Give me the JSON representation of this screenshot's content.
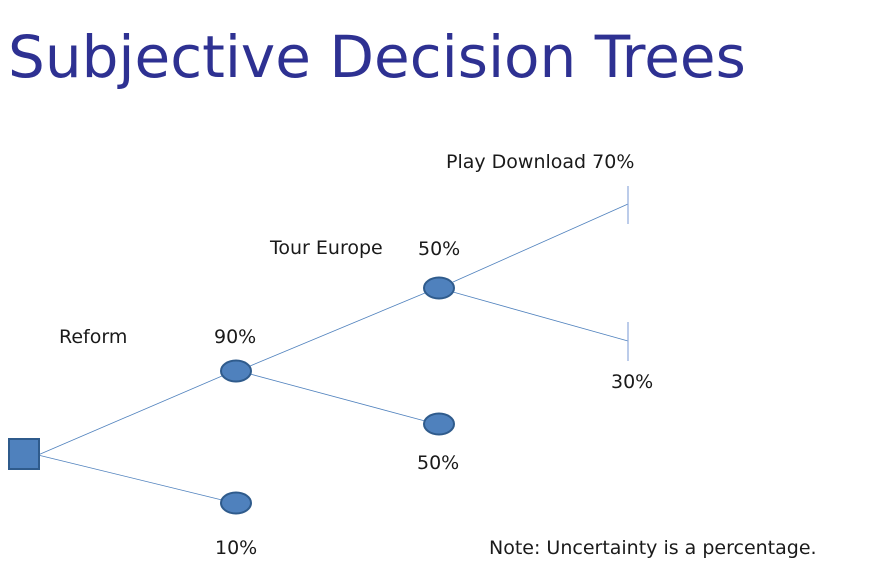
{
  "slide": {
    "title": "Subjective Decision Trees",
    "note": "Note:  Uncertainty is a percentage."
  },
  "tree": {
    "branch_labels": {
      "reform": "Reform",
      "tour_europe": "Tour Europe",
      "play_download": "Play Download"
    },
    "probabilities": {
      "reform_success": "90%",
      "reform_fail": "10%",
      "tour_success": "50%",
      "tour_fail": "50%",
      "download_success": "70%",
      "download_fail": "30%"
    }
  },
  "colors": {
    "title": "#2e3192",
    "node_fill": "#4f81bd",
    "node_stroke": "#2f5b8c",
    "branch_line": "#4f81bd"
  }
}
